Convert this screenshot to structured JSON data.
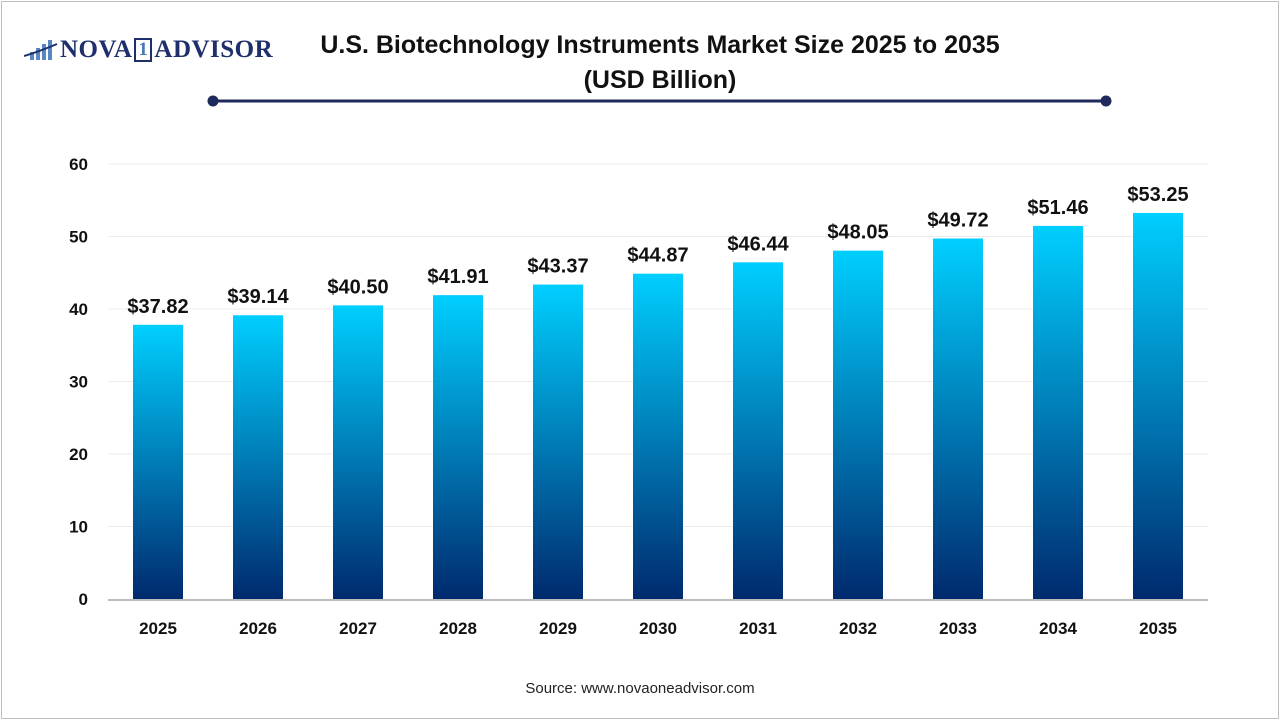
{
  "logo": {
    "text_left": "NOVA",
    "text_one": "1",
    "text_right": "ADVISOR"
  },
  "title_line1": "U.S. Biotechnology Instruments Market Size 2025 to 2035",
  "title_line2": "(USD Billion)",
  "source": "Source: www.novaoneadvisor.com",
  "colors": {
    "bar_top": "#00cfff",
    "bar_bottom": "#002a6e",
    "title_rule": "#1f2a5c"
  },
  "chart_data": {
    "type": "bar",
    "title": "U.S. Biotechnology Instruments Market Size 2025 to 2035 (USD Billion)",
    "categories": [
      "2025",
      "2026",
      "2027",
      "2028",
      "2029",
      "2030",
      "2031",
      "2032",
      "2033",
      "2034",
      "2035"
    ],
    "values": [
      37.82,
      39.14,
      40.5,
      41.91,
      43.37,
      44.87,
      46.44,
      48.05,
      49.72,
      51.46,
      53.25
    ],
    "data_labels": [
      "$37.82",
      "$39.14",
      "$40.50",
      "$41.91",
      "$43.37",
      "$44.87",
      "$46.44",
      "$48.05",
      "$49.72",
      "$51.46",
      "$53.25"
    ],
    "yticks": [
      0,
      10,
      20,
      30,
      40,
      50,
      60
    ],
    "ylim": [
      0,
      60
    ],
    "grid": true,
    "xlabel": "",
    "ylabel": ""
  }
}
